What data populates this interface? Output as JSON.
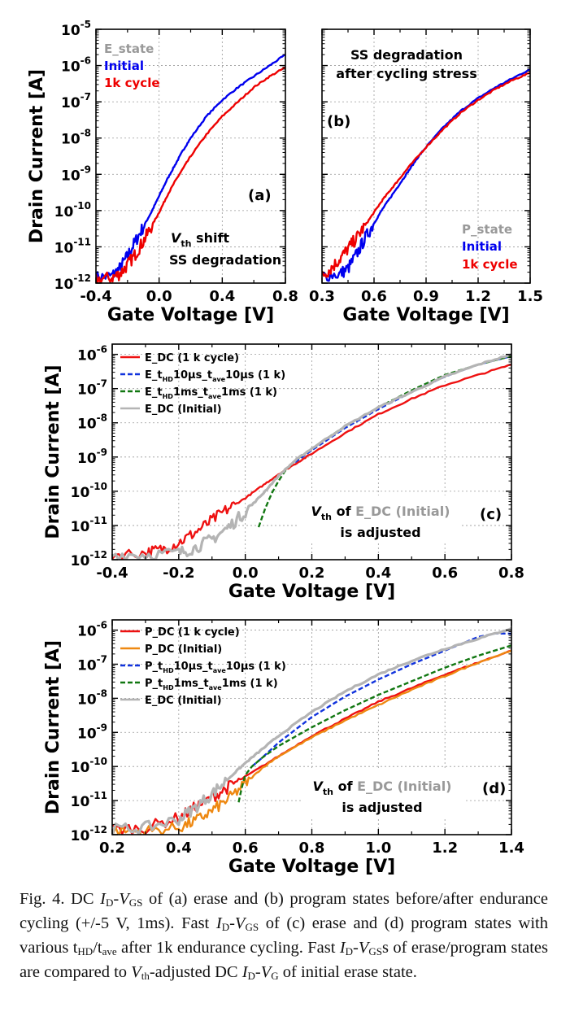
{
  "figure": {
    "caption": {
      "p1": "Fig. 4. DC ",
      "p2": "I",
      "p3": "D",
      "p4": "-",
      "p5": "V",
      "p6": "GS",
      "p7": " of (a) erase and (b) program states before/after endurance cycling (+/-5 V, 1ms). Fast ",
      "p8": "I",
      "p9": "D",
      "p10": "-",
      "p11": "V",
      "p12": "GS",
      "p13": " of (c) erase and (d) program states with various t",
      "p14": "HD",
      "p15": "/t",
      "p16": "ave",
      "p17": " after 1k endurance cycling. Fast ",
      "p18": "I",
      "p19": "D",
      "p20": "-",
      "p21": "V",
      "p22": "GS",
      "p23": "s of erase/program states are compared to ",
      "p24": "V",
      "p25": "th",
      "p26": "-adjusted DC ",
      "p27": "I",
      "p28": "D",
      "p29": "-",
      "p30": "V",
      "p31": "G",
      "p32": " of initial erase state."
    }
  },
  "chart_data": [
    {
      "id": "a",
      "type": "line",
      "panel_label": "(a)",
      "xlabel": "Gate Voltage [V]",
      "ylabel": "Drain Current [A]",
      "xlim": [
        -0.4,
        0.8
      ],
      "ylim_log10": [
        -12,
        -5
      ],
      "xticks": [
        "-0.4",
        "0.0",
        "0.4",
        "0.8"
      ],
      "xtick_values": [
        -0.4,
        0.0,
        0.4,
        0.8
      ],
      "yticks": [
        "10-12",
        "10-11",
        "10-10",
        "10-9",
        "10-8",
        "10-7",
        "10-6",
        "10-5"
      ],
      "ytick_exponents": [
        -12,
        -11,
        -10,
        -9,
        -8,
        -7,
        -6,
        -5
      ],
      "y_scale": "log",
      "grid": true,
      "legend_title": "E_state",
      "annotations": [
        {
          "v": "V",
          "sub": "th",
          "rest": " shift"
        },
        {
          "text": "SS degradation"
        }
      ],
      "series": [
        {
          "name": "Initial",
          "color": "#0000ee",
          "dash": "solid",
          "noise": true,
          "x": [
            -0.4,
            -0.3,
            -0.25,
            -0.2,
            -0.15,
            -0.1,
            -0.05,
            0.0,
            0.05,
            0.1,
            0.15,
            0.2,
            0.3,
            0.4,
            0.5,
            0.6,
            0.7,
            0.8
          ],
          "y": [
            -11.85,
            -11.8,
            -11.6,
            -11.25,
            -10.85,
            -10.45,
            -10.05,
            -9.6,
            -9.15,
            -8.75,
            -8.35,
            -8.0,
            -7.4,
            -6.95,
            -6.6,
            -6.3,
            -6.0,
            -5.7
          ]
        },
        {
          "name": "1k cycle",
          "color": "#ee0000",
          "dash": "solid",
          "noise": true,
          "x": [
            -0.4,
            -0.3,
            -0.25,
            -0.2,
            -0.15,
            -0.1,
            -0.05,
            0.0,
            0.05,
            0.1,
            0.15,
            0.2,
            0.3,
            0.4,
            0.5,
            0.6,
            0.7,
            0.8
          ],
          "y": [
            -11.9,
            -11.85,
            -11.75,
            -11.5,
            -11.2,
            -10.85,
            -10.45,
            -10.05,
            -9.6,
            -9.2,
            -8.85,
            -8.5,
            -7.9,
            -7.4,
            -7.0,
            -6.6,
            -6.3,
            -6.05
          ]
        }
      ]
    },
    {
      "id": "b",
      "type": "line",
      "panel_label": "(b)",
      "xlabel": "Gate Voltage [V]",
      "xlim": [
        0.3,
        1.5
      ],
      "ylim_log10": [
        -12,
        -5
      ],
      "xticks": [
        "0.3",
        "0.6",
        "0.9",
        "1.2",
        "1.5"
      ],
      "xtick_values": [
        0.3,
        0.6,
        0.9,
        1.2,
        1.5
      ],
      "y_scale": "log",
      "grid": true,
      "legend_title": "P_state",
      "annotations": [
        {
          "text": "SS degradation"
        },
        {
          "text": "after cycling stress"
        }
      ],
      "series": [
        {
          "name": "Initial",
          "color": "#0000ee",
          "dash": "solid",
          "noise": true,
          "x": [
            0.3,
            0.4,
            0.45,
            0.5,
            0.55,
            0.6,
            0.65,
            0.7,
            0.75,
            0.8,
            0.85,
            0.9,
            1.0,
            1.1,
            1.2,
            1.3,
            1.4,
            1.5
          ],
          "y": [
            -11.8,
            -11.75,
            -11.6,
            -11.2,
            -10.75,
            -10.35,
            -9.95,
            -9.6,
            -9.25,
            -8.9,
            -8.55,
            -8.25,
            -7.7,
            -7.25,
            -6.9,
            -6.6,
            -6.35,
            -6.1
          ]
        },
        {
          "name": "1k cycle",
          "color": "#ee0000",
          "dash": "solid",
          "noise": true,
          "x": [
            0.3,
            0.35,
            0.4,
            0.45,
            0.5,
            0.55,
            0.6,
            0.65,
            0.7,
            0.75,
            0.8,
            0.9,
            1.0,
            1.1,
            1.2,
            1.3,
            1.4,
            1.5
          ],
          "y": [
            -11.8,
            -11.6,
            -11.35,
            -11.05,
            -10.75,
            -10.4,
            -10.05,
            -9.7,
            -9.4,
            -9.1,
            -8.8,
            -8.25,
            -7.75,
            -7.3,
            -6.95,
            -6.65,
            -6.4,
            -6.2
          ]
        }
      ]
    },
    {
      "id": "c",
      "type": "line",
      "panel_label": "(c)",
      "xlabel": "Gate Voltage [V]",
      "ylabel": "Drain Current [A]",
      "xlim": [
        -0.4,
        0.8
      ],
      "ylim_log10": [
        -12,
        -5.7
      ],
      "xticks": [
        "-0.4",
        "-0.2",
        "0.0",
        "0.2",
        "0.4",
        "0.6",
        "0.8"
      ],
      "xtick_values": [
        -0.4,
        -0.2,
        0.0,
        0.2,
        0.4,
        0.6,
        0.8
      ],
      "yticks": [
        "10-12",
        "10-11",
        "10-10",
        "10-9",
        "10-8",
        "10-7",
        "10-6"
      ],
      "ytick_exponents": [
        -12,
        -11,
        -10,
        -9,
        -8,
        -7,
        -6
      ],
      "y_scale": "log",
      "grid": true,
      "annotations": [
        {
          "v": "V",
          "sub": "th",
          "of": " of ",
          "hl": "E_DC (Initial)"
        },
        {
          "text": "is adjusted"
        }
      ],
      "series": [
        {
          "name": "E_DC (1 k cycle)",
          "color": "#ee1111",
          "dash": "solid",
          "noise": true,
          "x": [
            -0.4,
            -0.3,
            -0.25,
            -0.2,
            -0.15,
            -0.1,
            -0.05,
            0.0,
            0.05,
            0.1,
            0.15,
            0.2,
            0.3,
            0.4,
            0.5,
            0.6,
            0.7,
            0.8
          ],
          "y": [
            -11.85,
            -11.8,
            -11.7,
            -11.5,
            -11.2,
            -10.85,
            -10.5,
            -10.2,
            -9.85,
            -9.5,
            -9.2,
            -8.9,
            -8.3,
            -7.75,
            -7.3,
            -6.9,
            -6.6,
            -6.3
          ]
        },
        {
          "name": "E_tHD10μs_tave10μs (1 k)",
          "color": "#1133dd",
          "dash": "dashed",
          "noise": false,
          "x": [
            0.15,
            0.2,
            0.3,
            0.4,
            0.5,
            0.6,
            0.7,
            0.8
          ],
          "y": [
            -9.15,
            -8.8,
            -8.15,
            -7.6,
            -7.1,
            -6.65,
            -6.3,
            -6.05
          ]
        },
        {
          "name": "E_tHD1ms_tave1ms (1 k)",
          "color": "#117711",
          "dash": "dashed",
          "noise": false,
          "x": [
            0.04,
            0.06,
            0.08,
            0.1,
            0.12,
            0.15,
            0.2,
            0.3,
            0.4,
            0.5,
            0.6,
            0.7,
            0.8
          ],
          "y": [
            -11.05,
            -10.5,
            -10.05,
            -9.7,
            -9.4,
            -9.1,
            -8.75,
            -8.1,
            -7.55,
            -7.05,
            -6.6,
            -6.3,
            -6.05
          ]
        },
        {
          "name": "E_DC (Initial)",
          "color": "#b4b4b4",
          "dash": "solid",
          "noise": true,
          "width": 3.2,
          "x": [
            -0.4,
            -0.3,
            -0.2,
            -0.15,
            -0.1,
            -0.05,
            0.0,
            0.05,
            0.1,
            0.15,
            0.2,
            0.3,
            0.4,
            0.5,
            0.6,
            0.7,
            0.8
          ],
          "y": [
            -11.85,
            -11.85,
            -11.8,
            -11.65,
            -11.4,
            -11.05,
            -10.6,
            -10.1,
            -9.55,
            -9.1,
            -8.75,
            -8.1,
            -7.55,
            -7.1,
            -6.65,
            -6.3,
            -6.0
          ]
        }
      ]
    },
    {
      "id": "d",
      "type": "line",
      "panel_label": "(d)",
      "xlabel": "Gate Voltage [V]",
      "ylabel": "Drain Current [A]",
      "xlim": [
        0.2,
        1.4
      ],
      "ylim_log10": [
        -12,
        -5.7
      ],
      "xticks": [
        "0.2",
        "0.4",
        "0.6",
        "0.8",
        "1.0",
        "1.2",
        "1.4"
      ],
      "xtick_values": [
        0.2,
        0.4,
        0.6,
        0.8,
        1.0,
        1.2,
        1.4
      ],
      "yticks": [
        "10-12",
        "10-11",
        "10-10",
        "10-9",
        "10-8",
        "10-7",
        "10-6"
      ],
      "ytick_exponents": [
        -12,
        -11,
        -10,
        -9,
        -8,
        -7,
        -6
      ],
      "y_scale": "log",
      "grid": true,
      "annotations": [
        {
          "v": "V",
          "sub": "th",
          "of": " of ",
          "hl": "E_DC (Initial)"
        },
        {
          "text": "is adjusted"
        }
      ],
      "series": [
        {
          "name": "P_DC (1 k cycle)",
          "color": "#ee1111",
          "dash": "solid",
          "noise": true,
          "x": [
            0.2,
            0.3,
            0.4,
            0.45,
            0.5,
            0.55,
            0.6,
            0.7,
            0.8,
            0.9,
            1.0,
            1.1,
            1.2,
            1.3,
            1.4
          ],
          "y": [
            -11.85,
            -11.8,
            -11.5,
            -11.2,
            -10.9,
            -10.6,
            -10.3,
            -9.7,
            -9.1,
            -8.6,
            -8.1,
            -7.7,
            -7.3,
            -6.95,
            -6.6
          ]
        },
        {
          "name": "P_DC (Initial)",
          "color": "#ee8811",
          "dash": "solid",
          "noise": true,
          "x": [
            0.2,
            0.3,
            0.4,
            0.45,
            0.5,
            0.55,
            0.6,
            0.65,
            0.7,
            0.8,
            0.9,
            1.0,
            1.1,
            1.2,
            1.3,
            1.4
          ],
          "y": [
            -11.9,
            -11.9,
            -11.8,
            -11.6,
            -11.3,
            -10.95,
            -10.5,
            -10.05,
            -9.7,
            -9.15,
            -8.65,
            -8.2,
            -7.75,
            -7.35,
            -6.95,
            -6.6
          ]
        },
        {
          "name": "P_tHD10μs_tave10μs (1 k)",
          "color": "#1133dd",
          "dash": "dashed",
          "noise": false,
          "x": [
            0.62,
            0.65,
            0.7,
            0.8,
            0.9,
            1.0,
            1.1,
            1.2,
            1.3,
            1.35,
            1.4
          ],
          "y": [
            -10.0,
            -9.75,
            -9.3,
            -8.55,
            -7.95,
            -7.45,
            -7.0,
            -6.6,
            -6.2,
            -6.1,
            -6.1
          ]
        },
        {
          "name": "P_tHD1ms_tave1ms (1 k)",
          "color": "#117711",
          "dash": "dashed",
          "noise": false,
          "x": [
            0.58,
            0.59,
            0.6,
            0.62,
            0.65,
            0.7,
            0.8,
            0.9,
            1.0,
            1.1,
            1.2,
            1.3,
            1.4
          ],
          "y": [
            -11.05,
            -10.6,
            -10.25,
            -10.0,
            -9.75,
            -9.4,
            -8.85,
            -8.35,
            -7.9,
            -7.5,
            -7.1,
            -6.75,
            -6.45
          ]
        },
        {
          "name": "E_DC (Initial)",
          "color": "#b4b4b4",
          "dash": "solid",
          "noise": true,
          "width": 3.2,
          "x": [
            0.2,
            0.3,
            0.4,
            0.45,
            0.5,
            0.55,
            0.6,
            0.65,
            0.7,
            0.8,
            0.9,
            1.0,
            1.1,
            1.2,
            1.3,
            1.4
          ],
          "y": [
            -11.85,
            -11.8,
            -11.55,
            -11.2,
            -10.8,
            -10.35,
            -9.9,
            -9.5,
            -9.1,
            -8.4,
            -7.8,
            -7.3,
            -6.9,
            -6.55,
            -6.25,
            -5.95
          ]
        }
      ]
    }
  ]
}
